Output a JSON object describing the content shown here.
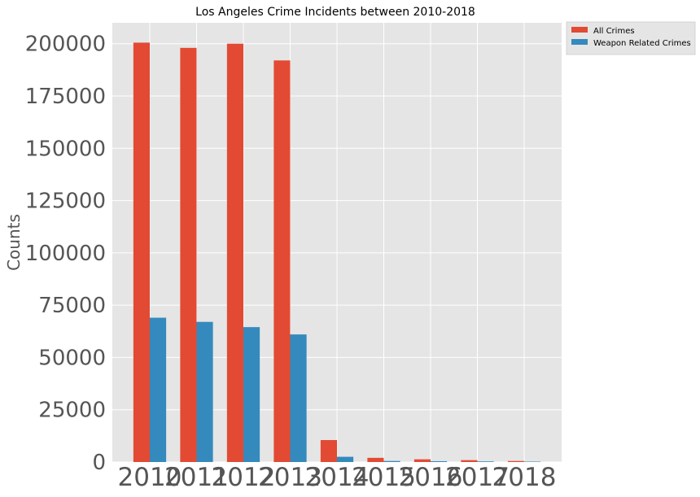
{
  "chart_data": {
    "type": "bar",
    "title": "Los Angeles Crime Incidents between 2010-2018",
    "xlabel": "",
    "ylabel": "Counts",
    "categories": [
      "2010",
      "2011",
      "2012",
      "2013",
      "2014",
      "2015",
      "2016",
      "2017",
      "2018"
    ],
    "series": [
      {
        "name": "All Crimes",
        "color": "#E24A33",
        "values": [
          200500,
          198000,
          200000,
          192000,
          10500,
          2000,
          1300,
          900,
          500
        ]
      },
      {
        "name": "Weapon Related Crimes",
        "color": "#348ABD",
        "values": [
          69000,
          67000,
          64500,
          61000,
          2500,
          500,
          400,
          300,
          200
        ]
      }
    ],
    "yticks": [
      "0",
      "25000",
      "50000",
      "75000",
      "100000",
      "125000",
      "150000",
      "175000",
      "200000"
    ],
    "ylim": [
      0,
      210000
    ],
    "grid": true,
    "legend_position": "outside top-right",
    "background": "#E5E5E5",
    "grid_color": "#FFFFFF"
  }
}
